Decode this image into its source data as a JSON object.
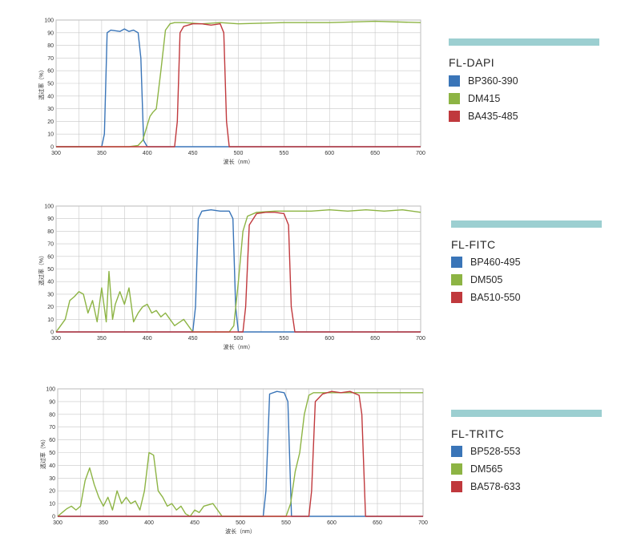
{
  "chart_data": [
    {
      "type": "line",
      "title": "FL-DAPI",
      "xlabel": "波长（nm）",
      "ylabel": "透过率（%）",
      "xlim": [
        300,
        700
      ],
      "ylim": [
        0,
        100
      ],
      "x_ticks": [
        "300",
        "350",
        "400",
        "450",
        "500",
        "550",
        "600",
        "650",
        "700"
      ],
      "y_ticks": [
        "0",
        "10",
        "20",
        "30",
        "40",
        "50",
        "60",
        "70",
        "80",
        "90",
        "100"
      ],
      "grid": true,
      "legend_position": "right",
      "series": [
        {
          "name": "BP360-390",
          "color": "#3a75b8",
          "x": [
            300,
            350,
            353,
            356,
            360,
            370,
            375,
            380,
            385,
            390,
            393,
            396,
            400,
            700
          ],
          "y": [
            0,
            0,
            10,
            90,
            92,
            91,
            93,
            91,
            92,
            90,
            70,
            5,
            0,
            0
          ]
        },
        {
          "name": "DM415",
          "color": "#8db444",
          "x": [
            300,
            380,
            390,
            395,
            400,
            403,
            406,
            410,
            415,
            420,
            425,
            430,
            440,
            460,
            480,
            500,
            550,
            600,
            650,
            700
          ],
          "y": [
            0,
            0,
            1,
            5,
            17,
            24,
            27,
            30,
            60,
            92,
            97,
            98,
            98,
            97,
            98,
            97,
            98,
            98,
            99,
            98
          ]
        },
        {
          "name": "BA435-485",
          "color": "#c0393d",
          "x": [
            300,
            430,
            433,
            436,
            440,
            450,
            460,
            470,
            480,
            484,
            487,
            490,
            700
          ],
          "y": [
            0,
            0,
            20,
            90,
            95,
            97,
            97,
            96,
            97,
            90,
            20,
            0,
            0
          ]
        }
      ]
    },
    {
      "type": "line",
      "title": "FL-FITC",
      "xlabel": "波长（nm）",
      "ylabel": "透过率（%）",
      "xlim": [
        300,
        700
      ],
      "ylim": [
        0,
        100
      ],
      "x_ticks": [
        "300",
        "350",
        "400",
        "450",
        "500",
        "550",
        "600",
        "650",
        "700"
      ],
      "y_ticks": [
        "0",
        "10",
        "20",
        "30",
        "40",
        "50",
        "60",
        "70",
        "80",
        "90",
        "100"
      ],
      "grid": true,
      "legend_position": "right",
      "series": [
        {
          "name": "BP460-495",
          "color": "#3a75b8",
          "x": [
            300,
            450,
            453,
            456,
            460,
            470,
            480,
            490,
            494,
            497,
            500,
            700
          ],
          "y": [
            0,
            0,
            20,
            90,
            96,
            97,
            96,
            96,
            90,
            20,
            0,
            0
          ]
        },
        {
          "name": "DM505",
          "color": "#8db444",
          "x": [
            300,
            305,
            310,
            315,
            320,
            325,
            330,
            335,
            340,
            345,
            350,
            355,
            358,
            362,
            365,
            370,
            375,
            380,
            385,
            390,
            395,
            400,
            405,
            410,
            415,
            420,
            430,
            440,
            450,
            490,
            495,
            500,
            505,
            510,
            520,
            540,
            560,
            580,
            600,
            620,
            640,
            660,
            680,
            700
          ],
          "y": [
            0,
            5,
            10,
            25,
            28,
            32,
            30,
            15,
            25,
            8,
            35,
            8,
            48,
            10,
            22,
            32,
            22,
            35,
            8,
            15,
            20,
            22,
            15,
            17,
            12,
            15,
            5,
            10,
            0,
            0,
            5,
            40,
            80,
            92,
            95,
            96,
            96,
            96,
            97,
            96,
            97,
            96,
            97,
            95
          ]
        },
        {
          "name": "BA510-550",
          "color": "#c0393d",
          "x": [
            300,
            505,
            508,
            512,
            520,
            530,
            540,
            550,
            555,
            558,
            562,
            700
          ],
          "y": [
            0,
            0,
            20,
            85,
            94,
            95,
            95,
            94,
            85,
            20,
            0,
            0
          ]
        }
      ]
    },
    {
      "type": "line",
      "title": "FL-TRITC",
      "xlabel": "波长（nm）",
      "ylabel": "透过率（%）",
      "xlim": [
        300,
        700
      ],
      "ylim": [
        0,
        100
      ],
      "x_ticks": [
        "300",
        "350",
        "400",
        "450",
        "500",
        "550",
        "600",
        "650",
        "700"
      ],
      "y_ticks": [
        "0",
        "10",
        "20",
        "30",
        "40",
        "50",
        "60",
        "70",
        "80",
        "90",
        "100"
      ],
      "grid": true,
      "legend_position": "right",
      "series": [
        {
          "name": "BP528-553",
          "color": "#3a75b8",
          "x": [
            300,
            525,
            528,
            532,
            540,
            548,
            552,
            556,
            700
          ],
          "y": [
            0,
            0,
            20,
            96,
            98,
            97,
            90,
            0,
            0
          ]
        },
        {
          "name": "DM565",
          "color": "#8db444",
          "x": [
            300,
            305,
            310,
            315,
            320,
            325,
            330,
            335,
            340,
            345,
            350,
            355,
            360,
            365,
            370,
            375,
            380,
            385,
            390,
            395,
            400,
            405,
            410,
            415,
            420,
            425,
            430,
            435,
            440,
            445,
            450,
            455,
            460,
            470,
            480,
            500,
            550,
            555,
            560,
            565,
            570,
            575,
            580,
            600,
            650,
            700
          ],
          "y": [
            0,
            3,
            6,
            8,
            5,
            8,
            28,
            38,
            25,
            15,
            8,
            15,
            5,
            20,
            10,
            15,
            10,
            12,
            5,
            20,
            50,
            48,
            20,
            15,
            8,
            10,
            5,
            8,
            2,
            0,
            5,
            3,
            8,
            10,
            0,
            0,
            0,
            10,
            35,
            50,
            80,
            95,
            97,
            97,
            97,
            97
          ]
        },
        {
          "name": "BA578-633",
          "color": "#c0393d",
          "x": [
            300,
            575,
            578,
            582,
            590,
            600,
            610,
            620,
            630,
            633,
            637,
            700
          ],
          "y": [
            0,
            0,
            20,
            90,
            96,
            98,
            97,
            98,
            95,
            80,
            0,
            0
          ]
        }
      ]
    }
  ]
}
